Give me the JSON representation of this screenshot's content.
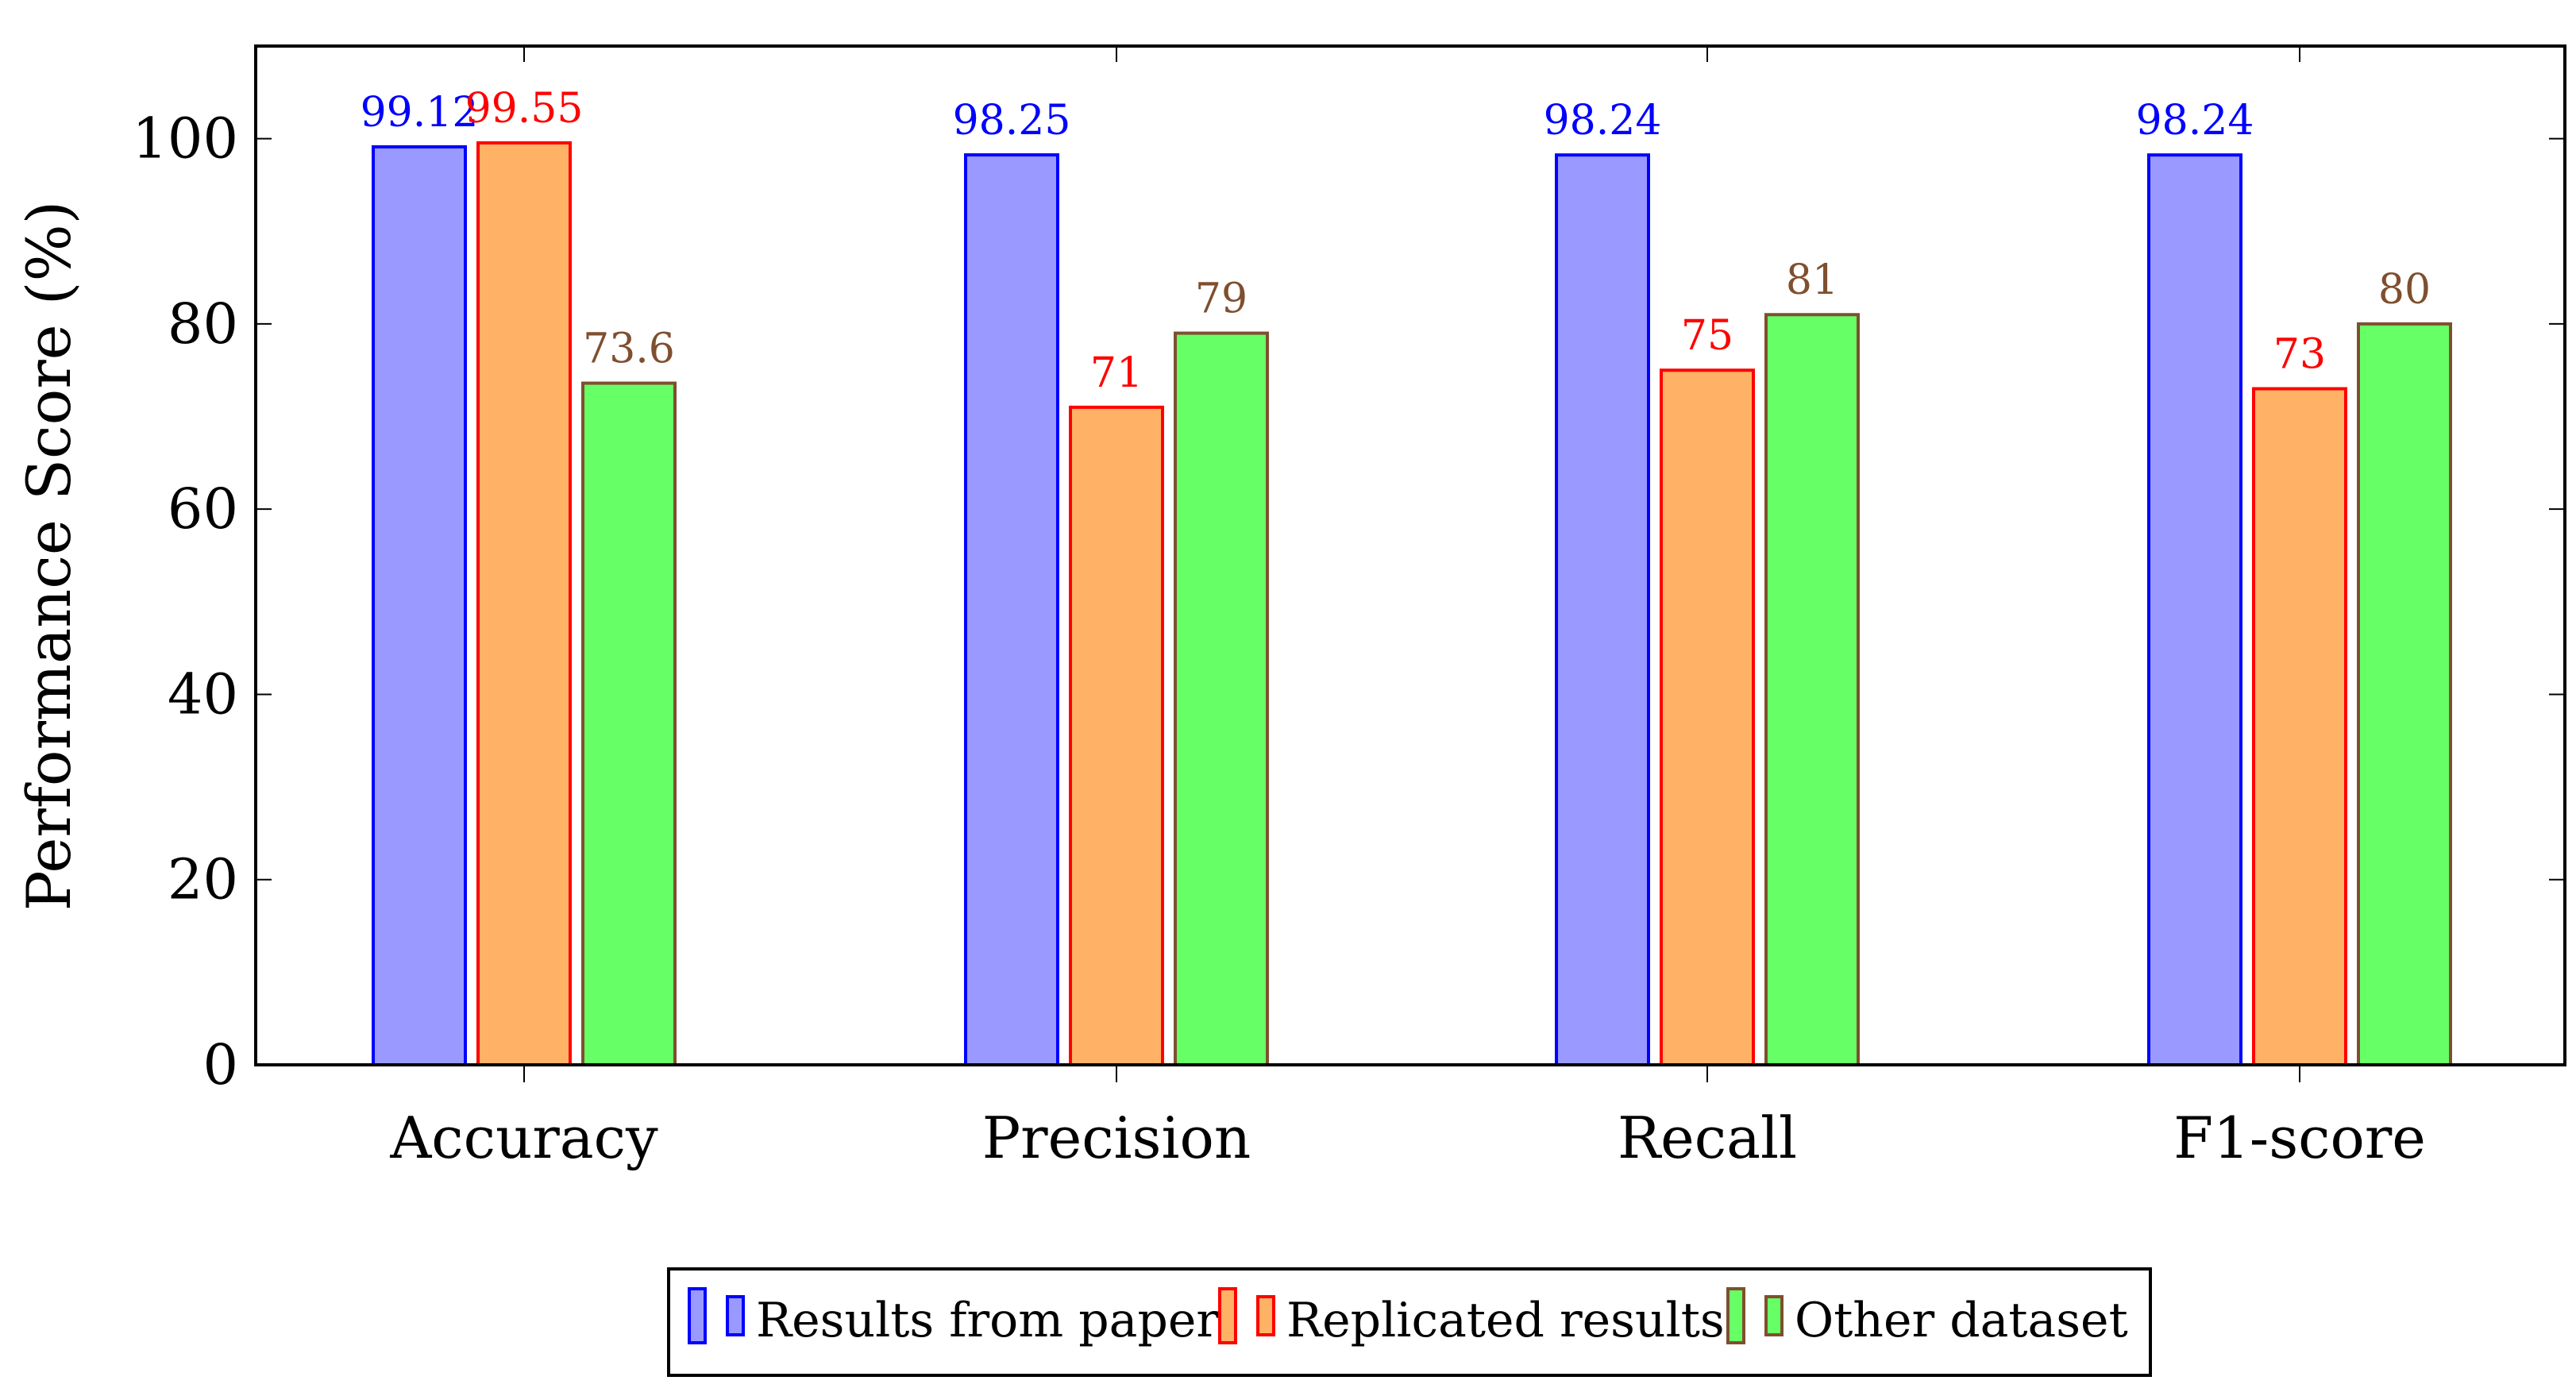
{
  "colors": {
    "axis": "#000000",
    "series_fill": [
      "#9999ff",
      "#ffb266",
      "#66ff66"
    ],
    "series_stroke": [
      "#0000ff",
      "#ff0000",
      "#7f4f2f"
    ],
    "label_color": [
      "#0000ff",
      "#ff0000",
      "#7f4f2f"
    ]
  },
  "chart_data": {
    "type": "bar",
    "title": "",
    "xlabel": "",
    "ylabel": "Performance Score (%)",
    "categories": [
      "Accuracy",
      "Precision",
      "Recall",
      "F1-score"
    ],
    "series": [
      {
        "name": "Results from paper",
        "values": [
          99.12,
          98.25,
          98.24,
          98.24
        ],
        "labels": [
          "99.12",
          "98.25",
          "98.24",
          "98.24"
        ]
      },
      {
        "name": "Replicated results",
        "values": [
          99.55,
          71,
          75,
          73
        ],
        "labels": [
          "99.55",
          "71",
          "75",
          "73"
        ]
      },
      {
        "name": "Other dataset",
        "values": [
          73.6,
          79,
          81,
          80
        ],
        "labels": [
          "73.6",
          "79",
          "81",
          "80"
        ]
      }
    ],
    "ylim": [
      0,
      110
    ],
    "yticks": [
      0,
      20,
      40,
      60,
      80,
      100
    ],
    "ytick_labels": [
      "0",
      "20",
      "40",
      "60",
      "80",
      "100"
    ],
    "grid": false,
    "legend_position": "bottom-center"
  }
}
